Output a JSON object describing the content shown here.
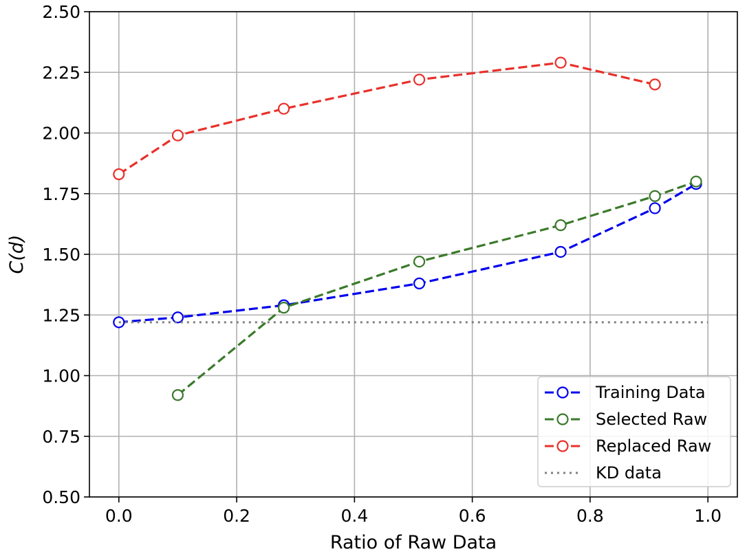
{
  "chart_data": {
    "type": "line",
    "xlabel": "Ratio of Raw Data",
    "ylabel": "C(d)",
    "xlim": [
      -0.05,
      1.05
    ],
    "ylim": [
      0.5,
      2.5
    ],
    "xticks": [
      "0.0",
      "0.2",
      "0.4",
      "0.6",
      "0.8",
      "1.0"
    ],
    "yticks": [
      "0.50",
      "0.75",
      "1.00",
      "1.25",
      "1.50",
      "1.75",
      "2.00",
      "2.25",
      "2.50"
    ],
    "grid": true,
    "legend_position": "lower-right",
    "series": [
      {
        "name": "Training Data",
        "color": "#0000ee",
        "style": "dashed",
        "marker": "open-circle",
        "x": [
          0.0,
          0.1,
          0.28,
          0.51,
          0.75,
          0.91,
          0.98
        ],
        "y": [
          1.22,
          1.24,
          1.29,
          1.38,
          1.51,
          1.69,
          1.79
        ]
      },
      {
        "name": "Selected Raw",
        "color": "#3a7a2a",
        "style": "dashed",
        "marker": "open-circle",
        "x": [
          0.1,
          0.28,
          0.51,
          0.75,
          0.91,
          0.98
        ],
        "y": [
          0.92,
          1.28,
          1.47,
          1.62,
          1.74,
          1.8
        ]
      },
      {
        "name": "Replaced Raw",
        "color": "#e8302a",
        "style": "dashed",
        "marker": "open-circle",
        "x": [
          0.0,
          0.1,
          0.28,
          0.51,
          0.75,
          0.91
        ],
        "y": [
          1.83,
          1.99,
          2.1,
          2.22,
          2.29,
          2.2
        ]
      },
      {
        "name": "KD data",
        "color": "#808080",
        "style": "dotted",
        "marker": "none",
        "x": [
          0.0,
          1.0
        ],
        "y": [
          1.22,
          1.22
        ]
      }
    ]
  }
}
